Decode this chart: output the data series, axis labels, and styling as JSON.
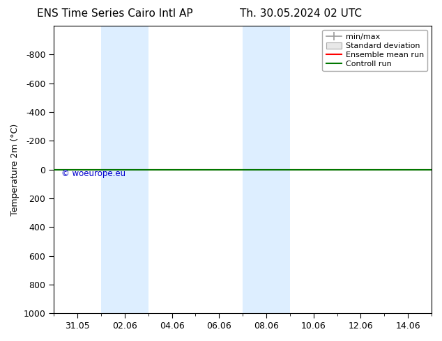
{
  "title_left": "ENS Time Series Cairo Intl AP",
  "title_right": "Th. 30.05.2024 02 UTC",
  "ylabel": "Temperature 2m (°C)",
  "watermark": "© woeurope.eu",
  "watermark_color": "#0000cc",
  "ylim_bottom": 1000,
  "ylim_top": -1000,
  "yticks": [
    -800,
    -600,
    -400,
    -200,
    0,
    200,
    400,
    600,
    800,
    1000
  ],
  "xtick_labels": [
    "31.05",
    "02.06",
    "04.06",
    "06.06",
    "08.06",
    "10.06",
    "12.06",
    "14.06"
  ],
  "xtick_positions_days": [
    1,
    3,
    5,
    7,
    9,
    11,
    13,
    15
  ],
  "xlim": [
    0,
    16
  ],
  "shaded_bands": [
    {
      "x_start_day": 2,
      "x_end_day": 4,
      "color": "#ddeeff"
    },
    {
      "x_start_day": 8,
      "x_end_day": 10,
      "color": "#ddeeff"
    }
  ],
  "hline_color_green": "#007700",
  "hline_color_red": "#ff0000",
  "legend_minmax_color": "#999999",
  "legend_stddev_color": "#cccccc",
  "legend_items": [
    {
      "label": "min/max",
      "color": "#999999",
      "lw": 1.2
    },
    {
      "label": "Standard deviation",
      "color": "#cccccc",
      "lw": 5
    },
    {
      "label": "Ensemble mean run",
      "color": "#ff0000",
      "lw": 1.5
    },
    {
      "label": "Controll run",
      "color": "#007700",
      "lw": 1.5
    }
  ],
  "bg_color": "#ffffff",
  "plot_bg_color": "#ffffff",
  "border_color": "#000000",
  "font_size": 9,
  "title_font_size": 11
}
